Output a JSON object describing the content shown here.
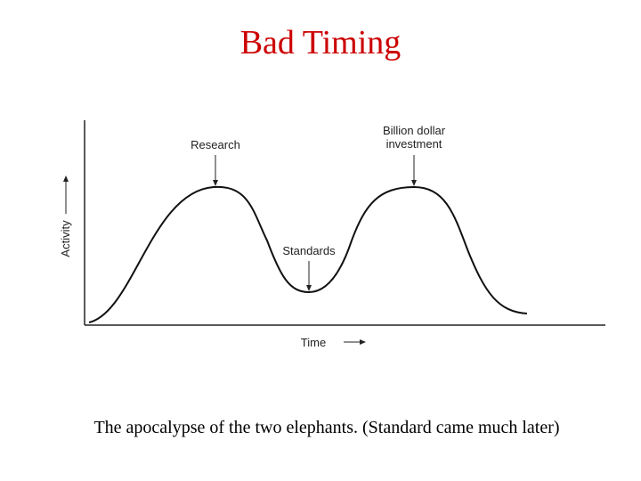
{
  "header": {
    "title": "Bad Timing"
  },
  "diagram": {
    "y_axis_label": "Activity",
    "x_axis_label": "Time",
    "annotations": {
      "research": "Research",
      "investment": [
        "Billion dollar",
        "investment"
      ],
      "standards": "Standards"
    }
  },
  "caption": "The apocalypse of the two elephants. (Standard came much later)"
}
